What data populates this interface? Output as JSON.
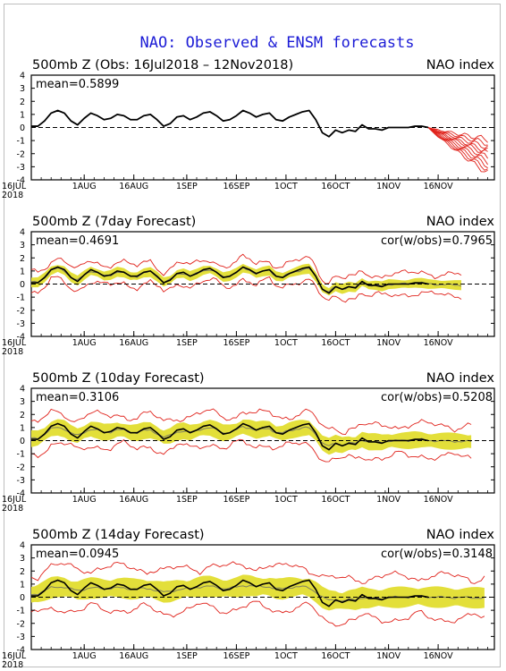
{
  "title": "NAO: Observed & ENSM forecasts",
  "colors": {
    "title": "#1c1cd6",
    "observed": "#000000",
    "ensemble_members": "#e0221b",
    "ensemble_spread": "#e3df3a",
    "ensemble_mean": "#808060",
    "zero_line": "#000000"
  },
  "chart_data": [
    {
      "type": "line",
      "heading_left": "500mb Z (Obs: 16Jul2018 – 12Nov2018)",
      "heading_right": "NAO index",
      "mean_label": "mean=0.5899",
      "cor_label": "",
      "ylim": [
        -4,
        4
      ],
      "yticks": [
        4,
        3,
        2,
        1,
        0,
        -1,
        -2,
        -3,
        -4
      ],
      "xticks": [
        "16JUL\n2018",
        "1AUG",
        "16AUG",
        "1SEP",
        "16SEP",
        "1OCT",
        "16OCT",
        "1NOV",
        "16NOV"
      ],
      "observed": {
        "x": [
          0,
          2,
          4,
          6,
          8,
          10,
          12,
          14,
          16,
          18,
          20,
          22,
          24,
          26,
          28,
          30,
          32,
          34,
          36,
          38,
          40,
          42,
          44,
          46,
          48,
          50,
          52,
          54,
          56,
          58,
          60,
          62,
          64,
          66,
          68,
          70,
          72,
          74,
          76,
          78,
          80,
          82,
          84,
          86,
          88,
          90,
          92,
          94,
          96,
          98,
          100,
          102,
          104,
          106,
          108,
          110,
          112,
          114,
          116,
          118,
          120
        ],
        "y": [
          0.1,
          0.1,
          0.5,
          1.1,
          1.3,
          1.1,
          0.5,
          0.2,
          0.7,
          1.1,
          0.9,
          0.6,
          0.7,
          1.0,
          0.9,
          0.6,
          0.6,
          0.9,
          1.0,
          0.6,
          0.1,
          0.3,
          0.8,
          0.9,
          0.6,
          0.8,
          1.1,
          1.2,
          0.9,
          0.5,
          0.6,
          0.9,
          1.3,
          1.1,
          0.8,
          1.0,
          1.1,
          0.6,
          0.5,
          0.8,
          1.0,
          1.2,
          1.3,
          0.6,
          -0.4,
          -0.7,
          -0.2,
          -0.4,
          -0.2,
          -0.3,
          0.2,
          -0.1,
          -0.1,
          -0.2,
          0.0,
          0.0,
          0.0,
          0.0,
          0.1,
          0.1,
          0.0
        ]
      },
      "forecast_members_from_x": 120,
      "forecast_members_end_x": 138,
      "forecast_members_end_y": [
        -0.9,
        -1.2,
        -1.5,
        -1.8,
        -2.0,
        -2.3,
        -2.6,
        -2.9,
        -3.2,
        -3.5
      ]
    },
    {
      "type": "line",
      "heading_left": "500mb Z (7day Forecast)",
      "heading_right": "NAO index",
      "mean_label": "mean=0.4691",
      "cor_label": "cor(w/obs)=0.7965",
      "ylim": [
        -4,
        4
      ],
      "yticks": [
        4,
        3,
        2,
        1,
        0,
        -1,
        -2,
        -3,
        -4
      ],
      "xticks": [
        "16JUL\n2018",
        "1AUG",
        "16AUG",
        "1SEP",
        "16SEP",
        "1OCT",
        "16OCT",
        "1NOV",
        "16NOV"
      ],
      "forecast_x_end": 130,
      "spread": 0.35,
      "envelope": 0.8,
      "blend": 0.85
    },
    {
      "type": "line",
      "heading_left": "500mb Z (10day Forecast)",
      "heading_right": "NAO index",
      "mean_label": "mean=0.3106",
      "cor_label": "cor(w/obs)=0.5208",
      "ylim": [
        -4,
        4
      ],
      "yticks": [
        4,
        3,
        2,
        1,
        0,
        -1,
        -2,
        -3,
        -4
      ],
      "xticks": [
        "16JUL\n2018",
        "1AUG",
        "16AUG",
        "1SEP",
        "16SEP",
        "1OCT",
        "16OCT",
        "1NOV",
        "16NOV"
      ],
      "forecast_x_end": 133,
      "spread": 0.6,
      "envelope": 1.2,
      "blend": 0.6
    },
    {
      "type": "line",
      "heading_left": "500mb Z (14day Forecast)",
      "heading_right": "NAO index",
      "mean_label": "mean=0.0945",
      "cor_label": "cor(w/obs)=0.3148",
      "ylim": [
        -4,
        4
      ],
      "yticks": [
        4,
        3,
        2,
        1,
        0,
        -1,
        -2,
        -3,
        -4
      ],
      "xticks": [
        "16JUL\n2018",
        "1AUG",
        "16AUG",
        "1SEP",
        "16SEP",
        "1OCT",
        "16OCT",
        "1NOV",
        "16NOV"
      ],
      "forecast_x_end": 137,
      "spread": 0.75,
      "envelope": 1.6,
      "blend": 0.3
    }
  ]
}
